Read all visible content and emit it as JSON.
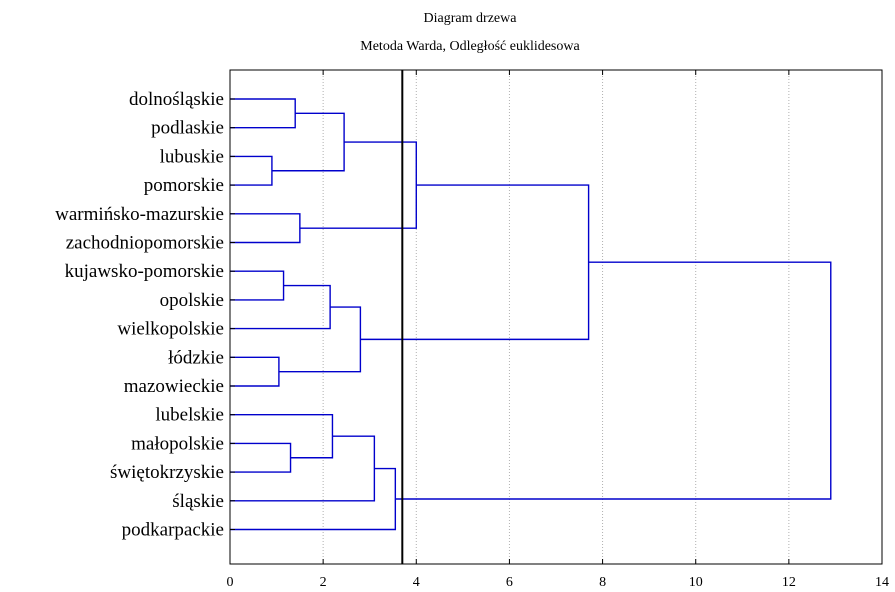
{
  "title": "Diagram drzewa",
  "subtitle": "Metoda Warda, Odległość euklidesowa",
  "chart_data": {
    "type": "dendrogram",
    "title": "Diagram drzewa",
    "subtitle": "Metoda Warda, Odległość euklidesowa",
    "xlabel": "",
    "ylabel": "",
    "xlim": [
      0,
      14
    ],
    "xticks": [
      0,
      2,
      4,
      6,
      8,
      10,
      12,
      14
    ],
    "grid": "vertical dotted",
    "cut_line": 3.7,
    "colors": {
      "link": "#0000cc",
      "cut": "#000000",
      "grid": "#b0b0b0"
    },
    "leaves": [
      "dolnośląskie",
      "podlaskie",
      "lubuskie",
      "pomorskie",
      "warmińsko-mazurskie",
      "zachodniopomorskie",
      "kujawsko-pomorskie",
      "opolskie",
      "wielkopolskie",
      "łódzkie",
      "mazowieckie",
      "lubelskie",
      "małopolskie",
      "świętokrzyskie",
      "śląskie",
      "podkarpackie"
    ],
    "merges": [
      {
        "a": "L0",
        "b": "L1",
        "height": 1.4
      },
      {
        "a": "L2",
        "b": "L3",
        "height": 0.9
      },
      {
        "a": "M0",
        "b": "M1",
        "height": 2.45
      },
      {
        "a": "L4",
        "b": "L5",
        "height": 1.5
      },
      {
        "a": "M2",
        "b": "M3",
        "height": 4.0
      },
      {
        "a": "L6",
        "b": "L7",
        "height": 1.15
      },
      {
        "a": "M5",
        "b": "L8",
        "height": 2.15
      },
      {
        "a": "L9",
        "b": "L10",
        "height": 1.05
      },
      {
        "a": "M6",
        "b": "M7",
        "height": 2.8
      },
      {
        "a": "M4",
        "b": "M8",
        "height": 7.7
      },
      {
        "a": "L12",
        "b": "L13",
        "height": 1.3
      },
      {
        "a": "L11",
        "b": "M10",
        "height": 2.2
      },
      {
        "a": "M11",
        "b": "L14",
        "height": 3.1
      },
      {
        "a": "M12",
        "b": "L15",
        "height": 3.55
      },
      {
        "a": "M9",
        "b": "M13",
        "height": 12.9
      }
    ]
  }
}
